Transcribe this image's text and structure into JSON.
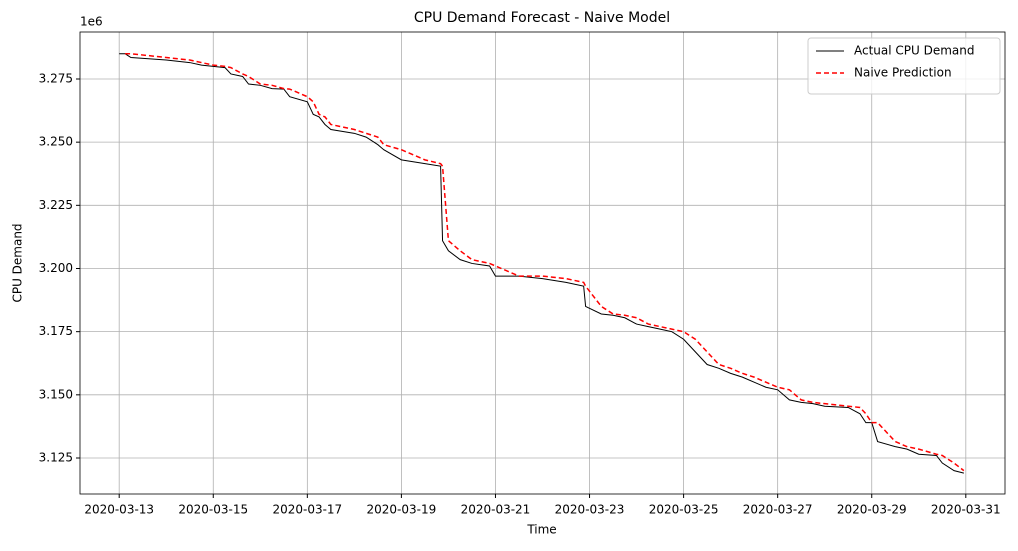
{
  "chart_data": {
    "type": "line",
    "title": "CPU Demand Forecast - Naive Model",
    "x_label": "Time",
    "y_label": "CPU Demand",
    "y_offset_text": "1e6",
    "x": [
      "2020-03-13 00:00",
      "2020-03-13 03:00",
      "2020-03-13 06:00",
      "2020-03-14 00:00",
      "2020-03-14 12:00",
      "2020-03-14 18:00",
      "2020-03-15 00:00",
      "2020-03-15 06:00",
      "2020-03-15 09:00",
      "2020-03-15 15:00",
      "2020-03-15 18:00",
      "2020-03-16 00:00",
      "2020-03-16 06:00",
      "2020-03-16 12:00",
      "2020-03-16 15:00",
      "2020-03-17 00:00",
      "2020-03-17 03:00",
      "2020-03-17 06:00",
      "2020-03-17 09:00",
      "2020-03-17 12:00",
      "2020-03-18 00:00",
      "2020-03-18 06:00",
      "2020-03-18 12:00",
      "2020-03-18 15:00",
      "2020-03-19 00:00",
      "2020-03-19 12:00",
      "2020-03-19 20:00",
      "2020-03-19 21:00",
      "2020-03-20 00:00",
      "2020-03-20 06:00",
      "2020-03-20 12:00",
      "2020-03-20 21:00",
      "2020-03-21 00:00",
      "2020-03-21 12:00",
      "2020-03-22 00:00",
      "2020-03-22 12:00",
      "2020-03-22 21:00",
      "2020-03-22 22:00",
      "2020-03-23 06:00",
      "2020-03-23 12:00",
      "2020-03-23 18:00",
      "2020-03-24 00:00",
      "2020-03-24 06:00",
      "2020-03-24 12:00",
      "2020-03-24 18:00",
      "2020-03-25 00:00",
      "2020-03-25 06:00",
      "2020-03-25 12:00",
      "2020-03-25 18:00",
      "2020-03-26 00:00",
      "2020-03-26 06:00",
      "2020-03-26 12:00",
      "2020-03-26 18:00",
      "2020-03-27 00:00",
      "2020-03-27 06:00",
      "2020-03-27 12:00",
      "2020-03-27 18:00",
      "2020-03-28 00:00",
      "2020-03-28 12:00",
      "2020-03-28 18:00",
      "2020-03-28 21:00",
      "2020-03-29 00:00",
      "2020-03-29 03:00",
      "2020-03-29 12:00",
      "2020-03-29 18:00",
      "2020-03-30 00:00",
      "2020-03-30 09:00",
      "2020-03-30 12:00",
      "2020-03-30 18:00",
      "2020-03-30 23:00"
    ],
    "series": [
      {
        "name": "Actual CPU Demand",
        "color": "#000000",
        "dash": false,
        "values": [
          3285000,
          3285000,
          3283500,
          3282500,
          3281500,
          3280500,
          3280000,
          3279500,
          3277000,
          3276000,
          3273000,
          3272500,
          3271200,
          3271000,
          3268000,
          3266000,
          3261000,
          3260000,
          3257000,
          3255000,
          3253500,
          3252000,
          3249000,
          3247000,
          3243000,
          3241500,
          3240500,
          3211000,
          3207000,
          3203500,
          3202000,
          3201000,
          3197000,
          3197000,
          3196000,
          3194500,
          3193000,
          3185000,
          3182000,
          3181500,
          3180500,
          3178000,
          3177000,
          3176000,
          3175000,
          3172000,
          3167000,
          3162000,
          3160500,
          3158500,
          3157000,
          3155000,
          3153000,
          3152000,
          3148000,
          3147000,
          3146500,
          3145500,
          3145000,
          3142500,
          3139000,
          3139000,
          3131500,
          3129500,
          3128500,
          3126500,
          3126000,
          3123000,
          3120000,
          3119000
        ]
      },
      {
        "name": "Naive Prediction",
        "color": "#ff0000",
        "dash": true,
        "values": [
          null,
          3285000,
          3285000,
          3283500,
          3282500,
          3281500,
          3280500,
          3280000,
          3279500,
          3277000,
          3276000,
          3273000,
          3272500,
          3271200,
          3271000,
          3268000,
          3266000,
          3261000,
          3260000,
          3257000,
          3255000,
          3253500,
          3252000,
          3249000,
          3247000,
          3243000,
          3241500,
          3240500,
          3211000,
          3207000,
          3203500,
          3202000,
          3201000,
          3197000,
          3197000,
          3196000,
          3194500,
          3193000,
          3185000,
          3182000,
          3181500,
          3180500,
          3178000,
          3177000,
          3176000,
          3175000,
          3172000,
          3167000,
          3162000,
          3160500,
          3158500,
          3157000,
          3155000,
          3153000,
          3152000,
          3148000,
          3147000,
          3146500,
          3145500,
          3145000,
          3142500,
          3139000,
          3139000,
          3131500,
          3129500,
          3128500,
          3126500,
          3126000,
          3123000,
          3120000
        ]
      }
    ],
    "xlim": [
      "2020-03-12 04:00",
      "2020-03-31 20:00"
    ],
    "xticks": [
      "2020-03-13",
      "2020-03-15",
      "2020-03-17",
      "2020-03-19",
      "2020-03-21",
      "2020-03-23",
      "2020-03-25",
      "2020-03-27",
      "2020-03-29",
      "2020-03-31"
    ],
    "ylim": [
      3110750,
      3293600
    ],
    "yticks": [
      {
        "value": 3125000,
        "label": "3.125"
      },
      {
        "value": 3150000,
        "label": "3.150"
      },
      {
        "value": 3175000,
        "label": "3.175"
      },
      {
        "value": 3200000,
        "label": "3.200"
      },
      {
        "value": 3225000,
        "label": "3.225"
      },
      {
        "value": 3250000,
        "label": "3.250"
      },
      {
        "value": 3275000,
        "label": "3.275"
      }
    ],
    "grid": true,
    "legend": "upper right"
  }
}
